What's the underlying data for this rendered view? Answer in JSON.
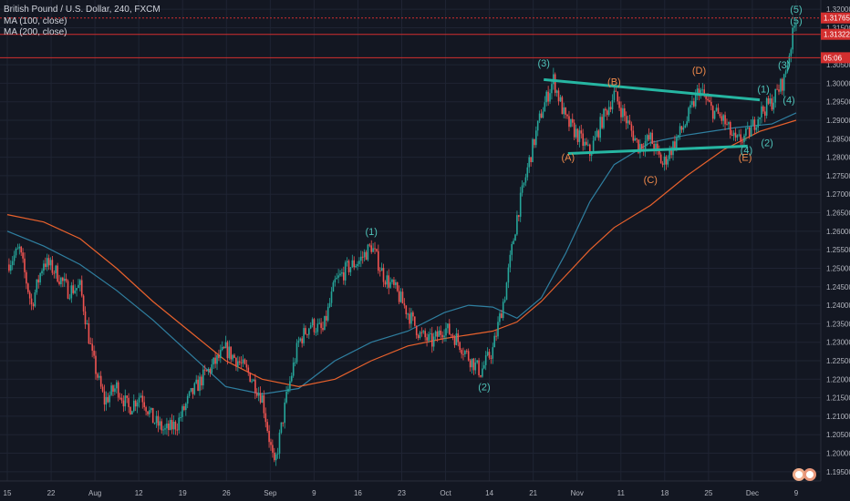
{
  "header": {
    "symbol_line": "British Pound / U.S. Dollar, 240, FXCM",
    "ma1_label": "MA (100, close)",
    "ma2_label": "MA (200, close)"
  },
  "colors": {
    "background": "#131722",
    "grid": "#1f2433",
    "up_candle": "#26a69a",
    "down_candle": "#ef5350",
    "ma100": "#2f7fa0",
    "ma200": "#e8612c",
    "channel": "#26b6a2",
    "wave_teal": "#4fc3b9",
    "wave_orange": "#f08a4b",
    "price_tag_red": "#d32f2f"
  },
  "price_tags": [
    {
      "value": "1.31765",
      "price": 1.31765,
      "dashed": true
    },
    {
      "value": "1.31322",
      "price": 1.31322,
      "dashed": false
    },
    {
      "value": "05:06",
      "price": 1.3069,
      "dashed": false
    }
  ],
  "chart_data": {
    "type": "candlestick",
    "title": "British Pound / U.S. Dollar, 240, FXCM",
    "ylim": [
      1.1925,
      1.3225
    ],
    "y_ticks": [
      "1.32000",
      "1.31500",
      "1.30500",
      "1.30000",
      "1.29500",
      "1.29000",
      "1.28500",
      "1.28000",
      "1.27500",
      "1.27000",
      "1.26500",
      "1.26000",
      "1.25500",
      "1.25000",
      "1.24500",
      "1.24000",
      "1.23500",
      "1.23000",
      "1.22500",
      "1.22000",
      "1.21500",
      "1.21000",
      "1.20500",
      "1.20000",
      "1.19500"
    ],
    "x_ticks": [
      "15",
      "22",
      "Aug",
      "12",
      "19",
      "26",
      "Sep",
      "9",
      "16",
      "23",
      "Oct",
      "14",
      "21",
      "Nov",
      "11",
      "18",
      "25",
      "Dec",
      "9"
    ],
    "series": [
      {
        "name": "MA (100, close)",
        "role": "ma100",
        "points": [
          [
            0,
            1.26
          ],
          [
            3,
            1.256
          ],
          [
            6,
            1.251
          ],
          [
            9,
            1.244
          ],
          [
            12,
            1.236
          ],
          [
            15,
            1.227
          ],
          [
            18,
            1.218
          ],
          [
            21,
            1.216
          ],
          [
            24,
            1.2175
          ],
          [
            27,
            1.225
          ],
          [
            30,
            1.23
          ],
          [
            33,
            1.233
          ],
          [
            36,
            1.238
          ],
          [
            38,
            1.24
          ],
          [
            40,
            1.2395
          ],
          [
            42,
            1.2365
          ],
          [
            44,
            1.242
          ],
          [
            46,
            1.254
          ],
          [
            48,
            1.268
          ],
          [
            50,
            1.278
          ],
          [
            53,
            1.284
          ],
          [
            56,
            1.286
          ],
          [
            60,
            1.288
          ],
          [
            63,
            1.289
          ],
          [
            65,
            1.292
          ]
        ]
      },
      {
        "name": "MA (200, close)",
        "role": "ma200",
        "points": [
          [
            0,
            1.2645
          ],
          [
            3,
            1.2625
          ],
          [
            6,
            1.258
          ],
          [
            9,
            1.25
          ],
          [
            12,
            1.241
          ],
          [
            15,
            1.233
          ],
          [
            18,
            1.225
          ],
          [
            21,
            1.22
          ],
          [
            24,
            1.218
          ],
          [
            27,
            1.22
          ],
          [
            30,
            1.225
          ],
          [
            33,
            1.229
          ],
          [
            36,
            1.231
          ],
          [
            38,
            1.232
          ],
          [
            40,
            1.233
          ],
          [
            42,
            1.2355
          ],
          [
            44,
            1.241
          ],
          [
            46,
            1.248
          ],
          [
            48,
            1.255
          ],
          [
            50,
            1.261
          ],
          [
            53,
            1.267
          ],
          [
            56,
            1.275
          ],
          [
            59,
            1.282
          ],
          [
            62,
            1.287
          ],
          [
            65,
            1.29
          ]
        ]
      },
      {
        "name": "Price (close)",
        "role": "price",
        "points": [
          [
            0,
            1.251
          ],
          [
            1,
            1.255
          ],
          [
            2,
            1.24
          ],
          [
            3,
            1.252
          ],
          [
            4,
            1.249
          ],
          [
            5,
            1.244
          ],
          [
            6,
            1.245
          ],
          [
            7,
            1.226
          ],
          [
            8,
            1.214
          ],
          [
            9,
            1.218
          ],
          [
            10,
            1.212
          ],
          [
            11,
            1.216
          ],
          [
            12,
            1.209
          ],
          [
            13,
            1.206
          ],
          [
            14,
            1.208
          ],
          [
            15,
            1.215
          ],
          [
            16,
            1.22
          ],
          [
            17,
            1.224
          ],
          [
            18,
            1.228
          ],
          [
            19,
            1.225
          ],
          [
            20,
            1.221
          ],
          [
            21,
            1.215
          ],
          [
            22,
            1.196
          ],
          [
            23,
            1.215
          ],
          [
            24,
            1.23
          ],
          [
            25,
            1.235
          ],
          [
            26,
            1.233
          ],
          [
            27,
            1.246
          ],
          [
            28,
            1.25
          ],
          [
            29,
            1.252
          ],
          [
            30,
            1.256
          ],
          [
            31,
            1.248
          ],
          [
            32,
            1.244
          ],
          [
            33,
            1.238
          ],
          [
            34,
            1.232
          ],
          [
            35,
            1.23
          ],
          [
            36,
            1.234
          ],
          [
            37,
            1.231
          ],
          [
            38,
            1.226
          ],
          [
            39,
            1.222
          ],
          [
            40,
            1.228
          ],
          [
            41,
            1.243
          ],
          [
            42,
            1.264
          ],
          [
            43,
            1.279
          ],
          [
            44,
            1.292
          ],
          [
            45,
            1.301
          ],
          [
            46,
            1.29
          ],
          [
            47,
            1.286
          ],
          [
            48,
            1.281
          ],
          [
            49,
            1.29
          ],
          [
            50,
            1.297
          ],
          [
            51,
            1.29
          ],
          [
            52,
            1.283
          ],
          [
            53,
            1.285
          ],
          [
            54,
            1.278
          ],
          [
            55,
            1.284
          ],
          [
            56,
            1.29
          ],
          [
            57,
            1.2985
          ],
          [
            58,
            1.293
          ],
          [
            59,
            1.29
          ],
          [
            60,
            1.284
          ],
          [
            61,
            1.286
          ],
          [
            62,
            1.292
          ],
          [
            63,
            1.295
          ],
          [
            64,
            1.301
          ],
          [
            65,
            1.3176
          ]
        ]
      }
    ],
    "wave_labels": [
      {
        "text": "(1)",
        "x": 30,
        "price": 1.259,
        "color": "teal"
      },
      {
        "text": "(2)",
        "x": 39.3,
        "price": 1.217,
        "color": "teal"
      },
      {
        "text": "(3)",
        "x": 44.2,
        "price": 1.3045,
        "color": "teal"
      },
      {
        "text": "(A)",
        "x": 46.2,
        "price": 1.279,
        "color": "orange"
      },
      {
        "text": "(B)",
        "x": 50.0,
        "price": 1.2995,
        "color": "orange"
      },
      {
        "text": "(C)",
        "x": 53.0,
        "price": 1.273,
        "color": "orange"
      },
      {
        "text": "(D)",
        "x": 57.0,
        "price": 1.3025,
        "color": "orange"
      },
      {
        "text": "(E)",
        "x": 60.8,
        "price": 1.279,
        "color": "orange"
      },
      {
        "text": "(1)",
        "x": 62.3,
        "price": 1.2975,
        "color": "teal"
      },
      {
        "text": "(2)",
        "x": 62.6,
        "price": 1.283,
        "color": "teal"
      },
      {
        "text": "(3)",
        "x": 64.0,
        "price": 1.304,
        "color": "teal"
      },
      {
        "text": "(4)",
        "x": 64.4,
        "price": 1.2945,
        "color": "teal"
      },
      {
        "text": "(4)",
        "x": 60.9,
        "price": 1.281,
        "color": "teal"
      },
      {
        "text": "(5)",
        "x": 65.0,
        "price": 1.319,
        "color": "teal"
      },
      {
        "text": "(5)",
        "x": 65.0,
        "price": 1.316,
        "color": "teal"
      }
    ],
    "channel": {
      "upper": [
        [
          44.2,
          1.301
        ],
        [
          62.0,
          1.2955
        ]
      ],
      "lower": [
        [
          46.2,
          1.281
        ],
        [
          61.0,
          1.283
        ]
      ]
    }
  }
}
